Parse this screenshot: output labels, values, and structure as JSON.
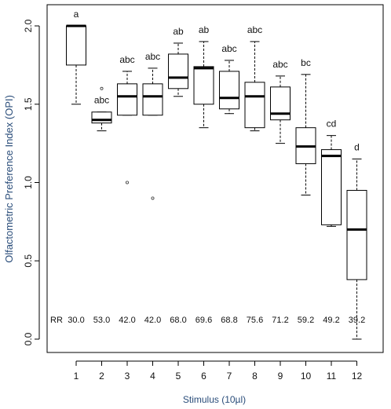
{
  "chart_data": {
    "type": "box",
    "xlabel": "Stimulus (10µl)",
    "ylabel": "Olfactometric Preference Index (OPI)",
    "ylim": [
      -0.05,
      2.1
    ],
    "y_ticks": [
      "0.0",
      "0.5",
      "1.0",
      "1.5",
      "2.0"
    ],
    "categories": [
      "1",
      "2",
      "3",
      "4",
      "5",
      "6",
      "7",
      "8",
      "9",
      "10",
      "11",
      "12"
    ],
    "boxes": [
      {
        "min": 1.5,
        "q1": 1.75,
        "median": 2.0,
        "q3": 2.0,
        "max": 2.0,
        "outliers": []
      },
      {
        "min": 1.33,
        "q1": 1.38,
        "median": 1.4,
        "q3": 1.45,
        "max": 1.45,
        "outliers": [
          1.6
        ]
      },
      {
        "min": 1.43,
        "q1": 1.43,
        "median": 1.55,
        "q3": 1.63,
        "max": 1.71,
        "outliers": [
          1.0
        ]
      },
      {
        "min": 1.43,
        "q1": 1.43,
        "median": 1.55,
        "q3": 1.63,
        "max": 1.73,
        "outliers": [
          0.9
        ]
      },
      {
        "min": 1.55,
        "q1": 1.6,
        "median": 1.67,
        "q3": 1.82,
        "max": 1.89,
        "outliers": []
      },
      {
        "min": 1.35,
        "q1": 1.5,
        "median": 1.73,
        "q3": 1.74,
        "max": 1.9,
        "outliers": []
      },
      {
        "min": 1.44,
        "q1": 1.47,
        "median": 1.54,
        "q3": 1.71,
        "max": 1.78,
        "outliers": []
      },
      {
        "min": 1.33,
        "q1": 1.35,
        "median": 1.55,
        "q3": 1.64,
        "max": 1.9,
        "outliers": []
      },
      {
        "min": 1.25,
        "q1": 1.4,
        "median": 1.44,
        "q3": 1.61,
        "max": 1.68,
        "outliers": []
      },
      {
        "min": 0.92,
        "q1": 1.12,
        "median": 1.23,
        "q3": 1.35,
        "max": 1.69,
        "outliers": []
      },
      {
        "min": 0.72,
        "q1": 0.73,
        "median": 1.17,
        "q3": 1.21,
        "max": 1.3,
        "outliers": []
      },
      {
        "min": 0.0,
        "q1": 0.38,
        "median": 0.7,
        "q3": 0.95,
        "max": 1.15,
        "outliers": []
      }
    ],
    "significance_letters": [
      "a",
      "abc",
      "abc",
      "abc",
      "ab",
      "ab",
      "abc",
      "abc",
      "abc",
      "bc",
      "cd",
      "d"
    ],
    "rr_label": "RR",
    "rr_values": [
      "30.0",
      "53.0",
      "42.0",
      "42.0",
      "68.0",
      "69.6",
      "68.8",
      "75.6",
      "71.2",
      "59.2",
      "49.2",
      "39.2"
    ],
    "grid": false
  }
}
